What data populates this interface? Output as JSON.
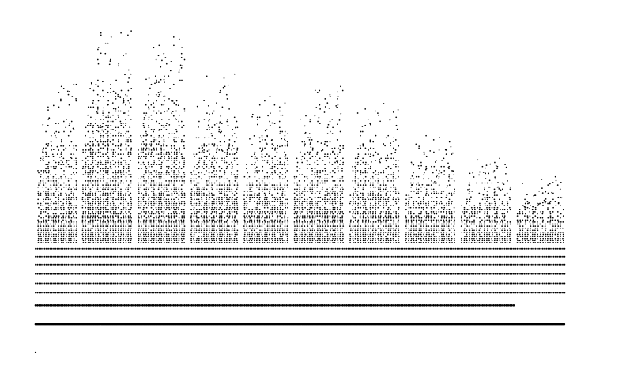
{
  "chart_data": {
    "type": "scatter",
    "title": "",
    "xlabel": "",
    "ylabel": "",
    "xlim": [
      0,
      10
    ],
    "ylim": [
      0,
      10
    ],
    "grid": false,
    "legend": "none",
    "colors": {
      "points": "#000000",
      "background": "#ffffff"
    },
    "clusters": [
      {
        "x_start": 0.05,
        "x_end": 0.75,
        "peak_y": 8.0,
        "top_y": 8.0
      },
      {
        "x_start": 0.85,
        "x_end": 1.75,
        "peak_y": 9.8,
        "top_y": 9.8
      },
      {
        "x_start": 1.85,
        "x_end": 2.7,
        "peak_y": 9.5,
        "top_y": 9.5
      },
      {
        "x_start": 2.8,
        "x_end": 3.65,
        "peak_y": 8.3,
        "top_y": 8.3
      },
      {
        "x_start": 3.75,
        "x_end": 4.55,
        "peak_y": 7.6,
        "top_y": 7.6
      },
      {
        "x_start": 4.65,
        "x_end": 5.55,
        "peak_y": 7.9,
        "top_y": 7.9
      },
      {
        "x_start": 5.65,
        "x_end": 6.55,
        "peak_y": 7.4,
        "top_y": 7.4
      },
      {
        "x_start": 6.65,
        "x_end": 7.55,
        "peak_y": 6.4,
        "top_y": 6.4
      },
      {
        "x_start": 7.65,
        "x_end": 8.55,
        "peak_y": 5.7,
        "top_y": 5.7
      },
      {
        "x_start": 8.65,
        "x_end": 9.5,
        "peak_y": 5.0,
        "top_y": 5.0
      }
    ],
    "bands": [
      {
        "y": 0.3,
        "x_start": 0.0,
        "x_end": 9.5
      },
      {
        "y": 0.9,
        "x_start": 0.0,
        "x_end": 8.6
      },
      {
        "y": 1.3,
        "x_start": 0.0,
        "x_end": 9.5
      },
      {
        "y": 1.6,
        "x_start": 0.0,
        "x_end": 9.5
      },
      {
        "y": 1.9,
        "x_start": 0.0,
        "x_end": 9.5
      },
      {
        "y": 2.2,
        "x_start": 0.0,
        "x_end": 9.5
      },
      {
        "y": 2.45,
        "x_start": 0.0,
        "x_end": 9.5
      },
      {
        "y": 2.7,
        "x_start": 0.0,
        "x_end": 9.5
      }
    ],
    "outliers": [
      {
        "x": 0.0,
        "y": -0.6
      }
    ]
  }
}
